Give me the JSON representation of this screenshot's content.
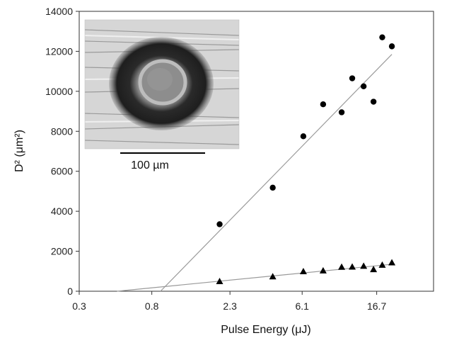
{
  "chart_data": {
    "type": "scatter",
    "title": "",
    "xlabel": "Pulse Energy (μJ)",
    "ylabel": "D² (μm²)",
    "x_scale": "log",
    "xlim": [
      0.3,
      36
    ],
    "ylim": [
      0,
      14000
    ],
    "x_ticks": [
      0.3,
      0.8,
      2.3,
      6.1,
      16.7
    ],
    "x_tick_labels": [
      "0.3",
      "0.8",
      "2.3",
      "6.1",
      "16.7"
    ],
    "y_ticks": [
      0,
      2000,
      4000,
      6000,
      8000,
      10000,
      12000,
      14000
    ],
    "y_tick_labels": [
      "0",
      "2000",
      "4000",
      "6000",
      "8000",
      "10000",
      "12000",
      "14000"
    ],
    "grid": false,
    "legend": "none",
    "series": [
      {
        "marker": "circle",
        "color": "#000000",
        "points": [
          {
            "x": 2.0,
            "y": 3350
          },
          {
            "x": 4.1,
            "y": 5180
          },
          {
            "x": 6.2,
            "y": 7750
          },
          {
            "x": 8.1,
            "y": 9350
          },
          {
            "x": 10.4,
            "y": 8950
          },
          {
            "x": 12.0,
            "y": 10650
          },
          {
            "x": 14.0,
            "y": 10250
          },
          {
            "x": 16.0,
            "y": 9480
          },
          {
            "x": 18.0,
            "y": 12700
          },
          {
            "x": 20.5,
            "y": 12250
          }
        ]
      },
      {
        "marker": "triangle",
        "color": "#000000",
        "points": [
          {
            "x": 2.0,
            "y": 480
          },
          {
            "x": 4.1,
            "y": 720
          },
          {
            "x": 6.2,
            "y": 980
          },
          {
            "x": 8.1,
            "y": 1020
          },
          {
            "x": 10.4,
            "y": 1200
          },
          {
            "x": 12.0,
            "y": 1210
          },
          {
            "x": 14.0,
            "y": 1250
          },
          {
            "x": 16.0,
            "y": 1080
          },
          {
            "x": 18.0,
            "y": 1300
          },
          {
            "x": 20.5,
            "y": 1420
          }
        ]
      }
    ],
    "fit_lines": [
      {
        "color": "#9a9a9a",
        "from": {
          "x": 0.9,
          "y": 0
        },
        "to": {
          "x": 20.5,
          "y": 11850
        }
      },
      {
        "color": "#9a9a9a",
        "from": {
          "x": 0.5,
          "y": 0
        },
        "to": {
          "x": 20.5,
          "y": 1350
        }
      }
    ],
    "inset": {
      "type": "micrograph",
      "scale_bar_label": "100 µm"
    }
  }
}
